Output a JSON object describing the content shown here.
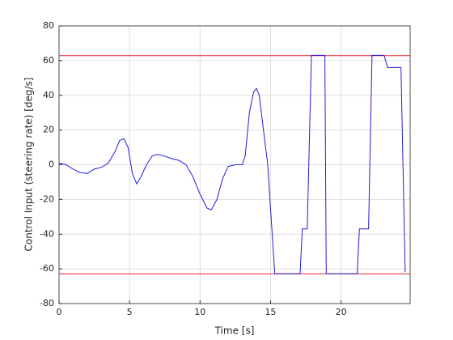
{
  "chart_data": {
    "type": "line",
    "x_label": "Time [s]",
    "y_label": "Control Input (steering rate) [deg/s]",
    "xlim": [
      0,
      24.9
    ],
    "xticks": [
      0,
      5,
      10,
      15,
      20
    ],
    "ylim": [
      -80,
      80
    ],
    "yticks": [
      -80,
      -60,
      -40,
      -20,
      0,
      20,
      40,
      60,
      80
    ],
    "grid": true,
    "limits": {
      "color": "#e8202a",
      "values": [
        62.83,
        -62.83
      ]
    },
    "series": [
      {
        "color": "#1f1fd8",
        "x": [
          0,
          0.5,
          1,
          1.5,
          2,
          2.5,
          3,
          3.5,
          4,
          4.3,
          4.6,
          4.9,
          5.2,
          5.5,
          5.8,
          6.2,
          6.6,
          7,
          7.5,
          8,
          8.5,
          9,
          9.5,
          10,
          10.5,
          10.8,
          11.2,
          11.6,
          12,
          12.5,
          13,
          13.2,
          13.5,
          13.8,
          14,
          14.2,
          14.5,
          14.8,
          15,
          15.3,
          16,
          17.1,
          17.25,
          17.6,
          17.9,
          18.85,
          18.95,
          20,
          21.15,
          21.3,
          21.95,
          22.2,
          23.05,
          23.3,
          24.25,
          24.55
        ],
        "values": [
          1,
          0,
          -2.5,
          -4.5,
          -5,
          -2.5,
          -1.5,
          1,
          8,
          14,
          15,
          10,
          -5,
          -11,
          -7,
          0,
          5,
          6,
          5,
          3.5,
          2.5,
          0,
          -7,
          -17,
          -25,
          -26,
          -20,
          -8,
          -1,
          0,
          0,
          5,
          30,
          42,
          44,
          40,
          20,
          0,
          -25,
          -62.8,
          -62.8,
          -62.8,
          -37,
          -37,
          63,
          63,
          -62.8,
          -62.8,
          -62.8,
          -37,
          -37,
          63,
          63,
          56,
          56,
          -62
        ]
      }
    ]
  }
}
